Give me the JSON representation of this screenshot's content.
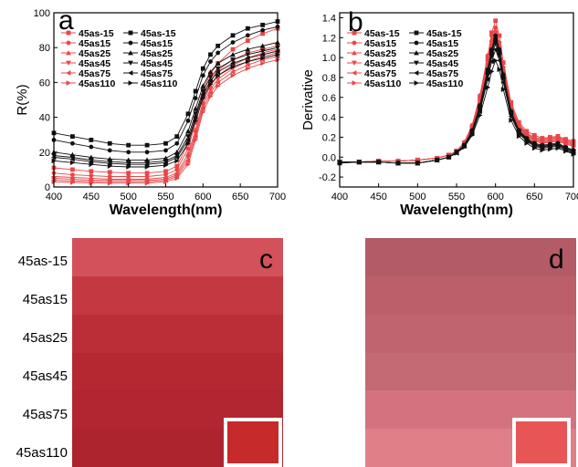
{
  "panel_letters": [
    "a",
    "b",
    "c",
    "d"
  ],
  "chart_data": [
    {
      "type": "line",
      "panel": "a",
      "xlabel": "Wavelength(nm)",
      "ylabel": "R(%)",
      "xlim": [
        400,
        700
      ],
      "ylim": [
        0,
        100
      ],
      "xticks": [
        400,
        450,
        500,
        550,
        600,
        650,
        700
      ],
      "yticks": [
        0,
        20,
        40,
        60,
        80,
        100
      ],
      "legend_position": "top-left",
      "x": [
        400,
        425,
        450,
        475,
        500,
        525,
        550,
        565,
        580,
        590,
        600,
        610,
        620,
        640,
        660,
        680,
        700
      ],
      "series": [
        {
          "name": "45as-15",
          "color": "#e8474a",
          "values": [
            11,
            10,
            9,
            8.5,
            8,
            8,
            9,
            12,
            25,
            40,
            56,
            65,
            71,
            79,
            84,
            88,
            91
          ]
        },
        {
          "name": "45as15",
          "color": "#e8474a",
          "values": [
            8,
            7,
            6.5,
            6,
            6,
            6,
            7,
            10,
            22,
            37,
            52,
            61,
            67,
            73,
            77,
            79,
            81
          ]
        },
        {
          "name": "45as25",
          "color": "#e8474a",
          "values": [
            6,
            5.5,
            5,
            4.5,
            4.5,
            4.5,
            5.5,
            8,
            19,
            33,
            49,
            58,
            64,
            70,
            74,
            77,
            79
          ]
        },
        {
          "name": "45as45",
          "color": "#e8474a",
          "values": [
            5,
            4.5,
            4,
            3.8,
            3.8,
            3.8,
            4.5,
            7,
            17,
            31,
            47,
            56,
            62,
            68,
            72,
            75,
            77
          ]
        },
        {
          "name": "45as75",
          "color": "#e8474a",
          "values": [
            4,
            3.5,
            3.2,
            3,
            3,
            3,
            3.8,
            6,
            15,
            29,
            45,
            54,
            60,
            66,
            70,
            73,
            75
          ]
        },
        {
          "name": "45as110",
          "color": "#e8474a",
          "values": [
            3,
            2.6,
            2.4,
            2.2,
            2.2,
            2.2,
            3,
            5,
            13,
            27,
            43,
            52,
            58,
            64,
            68,
            71,
            73
          ]
        },
        {
          "name": "45as-15",
          "color": "#111111",
          "values": [
            31,
            29,
            27,
            25,
            24,
            24,
            25,
            29,
            42,
            55,
            68,
            76,
            81,
            87,
            91,
            93,
            95
          ]
        },
        {
          "name": "45as15",
          "color": "#111111",
          "values": [
            27,
            25,
            23,
            21,
            20,
            20,
            21,
            25,
            38,
            51,
            64,
            72,
            77,
            83,
            87,
            90,
            92
          ]
        },
        {
          "name": "45as25",
          "color": "#111111",
          "values": [
            20,
            18.5,
            17,
            16,
            15.5,
            15.5,
            16.5,
            20,
            32,
            45,
            58,
            66,
            71,
            76,
            79,
            81,
            83
          ]
        },
        {
          "name": "45as45",
          "color": "#111111",
          "values": [
            18,
            17,
            15.5,
            14.5,
            14,
            14,
            15,
            18,
            29,
            42,
            55,
            63,
            68,
            73,
            76,
            78,
            80
          ]
        },
        {
          "name": "45as75",
          "color": "#111111",
          "values": [
            17,
            16,
            14.5,
            13.5,
            13,
            13,
            14,
            17,
            27,
            40,
            53,
            61,
            66,
            71,
            74,
            76,
            78
          ]
        },
        {
          "name": "45as110",
          "color": "#111111",
          "values": [
            15,
            14,
            13,
            12,
            11.5,
            11.5,
            12.5,
            15,
            25,
            38,
            51,
            59,
            64,
            69,
            72,
            74,
            76
          ]
        }
      ]
    },
    {
      "type": "line",
      "panel": "b",
      "xlabel": "Wavelength(nm)",
      "ylabel": "Derivative",
      "xlim": [
        400,
        700
      ],
      "ylim": [
        -0.3,
        1.45
      ],
      "xticks": [
        400,
        450,
        500,
        550,
        600,
        650,
        700
      ],
      "xticklabels": [
        "400",
        "450",
        "500",
        "550",
        "600",
        "650",
        "700"
      ],
      "yticks": [
        -0.2,
        0.0,
        0.2,
        0.4,
        0.6,
        0.8,
        1.0,
        1.2,
        1.4
      ],
      "yticklabels": [
        "-0.2",
        "0.0",
        "0.2",
        "0.4",
        "0.6",
        "0.8",
        "1.0",
        "1.2",
        "1.4"
      ],
      "legend_position": "top-left",
      "x": [
        400,
        425,
        450,
        475,
        500,
        525,
        540,
        550,
        560,
        570,
        580,
        590,
        595,
        600,
        605,
        610,
        620,
        630,
        640,
        650,
        660,
        670,
        680,
        690,
        700
      ],
      "series": [
        {
          "name": "45as-15",
          "color": "#e8474a",
          "values": [
            -0.06,
            -0.05,
            -0.04,
            -0.04,
            -0.03,
            -0.01,
            0.02,
            0.06,
            0.14,
            0.3,
            0.6,
            1.0,
            1.25,
            1.37,
            1.22,
            0.95,
            0.55,
            0.35,
            0.26,
            0.22,
            0.19,
            0.2,
            0.21,
            0.18,
            0.16
          ]
        },
        {
          "name": "45as15",
          "color": "#e8474a",
          "values": [
            -0.05,
            -0.05,
            -0.04,
            -0.04,
            -0.03,
            -0.01,
            0.02,
            0.06,
            0.15,
            0.32,
            0.62,
            1.02,
            1.22,
            1.3,
            1.15,
            0.9,
            0.52,
            0.33,
            0.24,
            0.2,
            0.18,
            0.19,
            0.2,
            0.17,
            0.15
          ]
        },
        {
          "name": "45as25",
          "color": "#e8474a",
          "values": [
            -0.05,
            -0.05,
            -0.04,
            -0.04,
            -0.03,
            -0.01,
            0.02,
            0.06,
            0.15,
            0.32,
            0.6,
            0.98,
            1.18,
            1.27,
            1.12,
            0.88,
            0.5,
            0.32,
            0.23,
            0.19,
            0.17,
            0.18,
            0.19,
            0.16,
            0.14
          ]
        },
        {
          "name": "45as45",
          "color": "#e8474a",
          "values": [
            -0.05,
            -0.05,
            -0.04,
            -0.04,
            -0.03,
            -0.01,
            0.02,
            0.06,
            0.14,
            0.3,
            0.58,
            0.96,
            1.15,
            1.25,
            1.1,
            0.86,
            0.49,
            0.31,
            0.22,
            0.18,
            0.16,
            0.17,
            0.18,
            0.15,
            0.13
          ]
        },
        {
          "name": "45as75",
          "color": "#e8474a",
          "values": [
            -0.05,
            -0.05,
            -0.04,
            -0.04,
            -0.03,
            -0.01,
            0.02,
            0.06,
            0.14,
            0.3,
            0.57,
            0.94,
            1.13,
            1.22,
            1.08,
            0.84,
            0.48,
            0.3,
            0.21,
            0.17,
            0.15,
            0.16,
            0.17,
            0.14,
            0.12
          ]
        },
        {
          "name": "45as110",
          "color": "#e8474a",
          "values": [
            -0.05,
            -0.05,
            -0.04,
            -0.04,
            -0.03,
            -0.01,
            0.02,
            0.06,
            0.14,
            0.29,
            0.55,
            0.92,
            1.1,
            1.2,
            1.06,
            0.82,
            0.47,
            0.29,
            0.2,
            0.16,
            0.14,
            0.15,
            0.16,
            0.13,
            0.11
          ]
        },
        {
          "name": "45as-15",
          "color": "#111111",
          "values": [
            -0.06,
            -0.05,
            -0.05,
            -0.06,
            -0.06,
            -0.03,
            0.0,
            0.05,
            0.12,
            0.26,
            0.5,
            0.85,
            1.05,
            1.18,
            1.05,
            0.8,
            0.45,
            0.26,
            0.18,
            0.13,
            0.11,
            0.12,
            0.13,
            0.09,
            0.06
          ]
        },
        {
          "name": "45as15",
          "color": "#111111",
          "values": [
            -0.05,
            -0.05,
            -0.05,
            -0.06,
            -0.06,
            -0.03,
            0.0,
            0.05,
            0.12,
            0.27,
            0.52,
            0.88,
            1.08,
            1.22,
            1.08,
            0.83,
            0.46,
            0.27,
            0.19,
            0.14,
            0.12,
            0.13,
            0.14,
            0.1,
            0.07
          ]
        },
        {
          "name": "45as25",
          "color": "#111111",
          "values": [
            -0.05,
            -0.05,
            -0.05,
            -0.06,
            -0.06,
            -0.03,
            0.0,
            0.05,
            0.12,
            0.26,
            0.5,
            0.86,
            1.06,
            1.19,
            1.06,
            0.81,
            0.45,
            0.26,
            0.18,
            0.13,
            0.11,
            0.12,
            0.13,
            0.09,
            0.06
          ]
        },
        {
          "name": "45as45",
          "color": "#111111",
          "values": [
            -0.05,
            -0.05,
            -0.05,
            -0.06,
            -0.06,
            -0.03,
            0.0,
            0.05,
            0.11,
            0.25,
            0.48,
            0.82,
            1.01,
            1.14,
            1.02,
            0.78,
            0.43,
            0.25,
            0.17,
            0.12,
            0.1,
            0.11,
            0.12,
            0.08,
            0.05
          ]
        },
        {
          "name": "45as75",
          "color": "#111111",
          "values": [
            -0.05,
            -0.05,
            -0.05,
            -0.06,
            -0.06,
            -0.03,
            0.0,
            0.04,
            0.11,
            0.24,
            0.46,
            0.78,
            0.96,
            1.08,
            0.97,
            0.75,
            0.41,
            0.24,
            0.16,
            0.11,
            0.09,
            0.1,
            0.11,
            0.07,
            0.04
          ]
        },
        {
          "name": "45as110",
          "color": "#111111",
          "values": [
            -0.05,
            -0.05,
            -0.05,
            -0.06,
            -0.06,
            -0.03,
            0.0,
            0.04,
            0.1,
            0.22,
            0.42,
            0.7,
            0.86,
            0.97,
            0.88,
            0.68,
            0.37,
            0.21,
            0.14,
            0.09,
            0.07,
            0.08,
            0.09,
            0.06,
            0.03
          ]
        }
      ]
    }
  ],
  "swatches": {
    "row_labels": [
      "45as-15",
      "45as15",
      "45as25",
      "45as45",
      "45as75",
      "45as110"
    ],
    "panel_c": {
      "letter": "c",
      "colors": [
        "#d2515a",
        "#c43842",
        "#bb2e38",
        "#b52731",
        "#b12630",
        "#ac252e"
      ],
      "inset_color": "#c62a2b"
    },
    "panel_d": {
      "letter": "d",
      "colors": [
        "#b35b67",
        "#bc5f6b",
        "#c0646f",
        "#c46a74",
        "#d5727f",
        "#e07f88"
      ],
      "inset_color": "#e85556"
    }
  }
}
